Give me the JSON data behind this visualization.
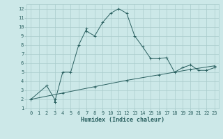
{
  "xlabel": "Humidex (Indice chaleur)",
  "bg_color": "#cce8e8",
  "grid_color": "#aacccc",
  "line_color": "#2a6060",
  "x_main": [
    0,
    2,
    3,
    3,
    4,
    5,
    6,
    7,
    7,
    8,
    9,
    10,
    11,
    12,
    13,
    14,
    15,
    16,
    17,
    18,
    19,
    20,
    21,
    22,
    23
  ],
  "y_main": [
    2,
    3.5,
    2.0,
    1.7,
    5.0,
    5.0,
    8.0,
    9.8,
    9.5,
    9.0,
    10.5,
    11.5,
    12.0,
    11.5,
    9.0,
    7.8,
    6.5,
    6.5,
    6.6,
    5.0,
    5.5,
    5.8,
    5.2,
    5.2,
    5.5
  ],
  "x_linear": [
    0,
    4,
    8,
    12,
    16,
    20,
    23
  ],
  "y_linear": [
    2.0,
    2.7,
    3.4,
    4.1,
    4.7,
    5.3,
    5.7
  ],
  "xlim": [
    -0.5,
    23.5
  ],
  "ylim": [
    1,
    12.5
  ],
  "xticks": [
    0,
    1,
    2,
    3,
    4,
    5,
    6,
    7,
    8,
    9,
    10,
    11,
    12,
    13,
    14,
    15,
    16,
    17,
    18,
    19,
    20,
    21,
    22,
    23
  ],
  "yticks": [
    1,
    2,
    3,
    4,
    5,
    6,
    7,
    8,
    9,
    10,
    11,
    12
  ],
  "xlabel_fontsize": 6,
  "tick_fontsize": 5
}
